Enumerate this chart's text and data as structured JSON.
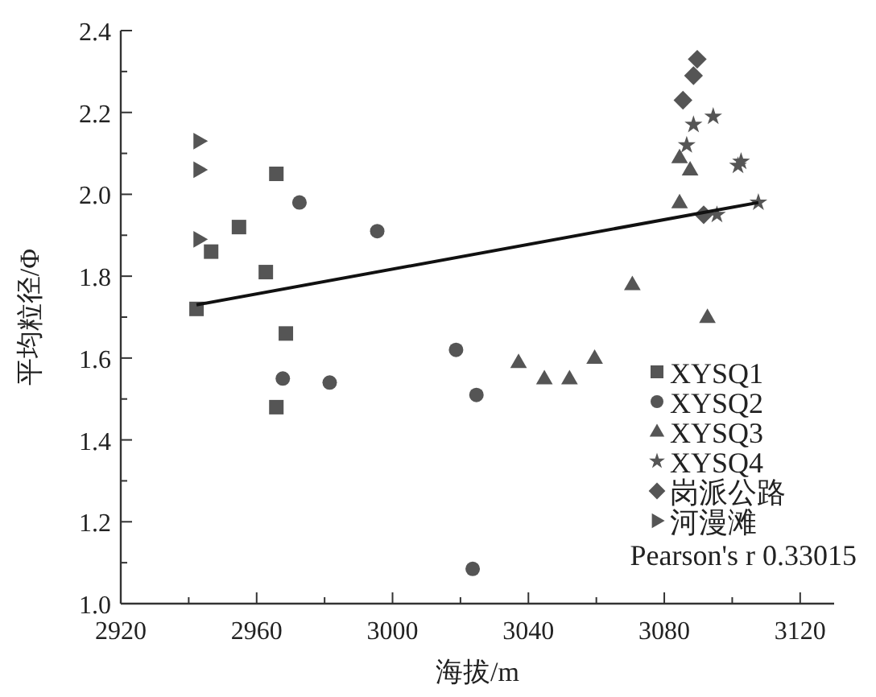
{
  "chart_data": {
    "type": "scatter",
    "xlabel": "海拔/m",
    "ylabel": "平均粒径/Φ",
    "xlim": [
      2920,
      3130
    ],
    "ylim": [
      1.0,
      2.4
    ],
    "xticks": [
      2920,
      {
        "value": 2940,
        "label": null
      },
      2960,
      {
        "value": 2980,
        "label": null
      },
      3000,
      {
        "value": 3020,
        "label": null
      },
      3040,
      {
        "value": 3060,
        "label": null
      },
      3080,
      {
        "value": 3100,
        "label": null
      },
      3120
    ],
    "yticks": [
      {
        "value": 1.0,
        "label": "1.0"
      },
      {
        "value": 1.1,
        "label": null
      },
      1.2,
      {
        "value": 1.3,
        "label": null
      },
      1.4,
      {
        "value": 1.5,
        "label": null
      },
      1.6,
      {
        "value": 1.7,
        "label": null
      },
      1.8,
      {
        "value": 1.9,
        "label": null
      },
      {
        "value": 2.0,
        "label": "2.0"
      },
      {
        "value": 2.1,
        "label": null
      },
      2.2,
      {
        "value": 2.3,
        "label": null
      },
      2.4
    ],
    "grid": false,
    "legend": "bottom right",
    "series": [
      {
        "name": "XYSQ1",
        "color": "#555555",
        "marker": "square",
        "x": [
          2942.3,
          2946.6,
          2954.8,
          2965.8,
          2962.7,
          2968.6,
          2965.8
        ],
        "values": [
          1.72,
          1.86,
          1.92,
          2.05,
          1.81,
          1.66,
          1.48
        ]
      },
      {
        "name": "XYSQ2",
        "color": "#555555",
        "marker": "circle",
        "x": [
          2972.6,
          2995.5,
          2967.7,
          2981.5,
          3018.7,
          3024.7,
          3023.6
        ],
        "values": [
          1.98,
          1.91,
          1.55,
          1.54,
          1.62,
          1.51,
          1.085
        ]
      },
      {
        "name": "XYSQ3",
        "color": "#555555",
        "marker": "triangle",
        "x": [
          3084.5,
          3087.6,
          3084.5,
          3070.6,
          3092.7,
          3037.1,
          3044.7,
          3052.1,
          3059.5
        ],
        "values": [
          2.09,
          2.06,
          1.98,
          1.78,
          1.7,
          1.59,
          1.55,
          1.55,
          1.6
        ]
      },
      {
        "name": "XYSQ4",
        "color": "#555555",
        "marker": "star",
        "x": [
          3088.6,
          3094.4,
          3086.6,
          3102.6,
          3101.7,
          3095.5,
          3107.7
        ],
        "values": [
          2.17,
          2.19,
          2.12,
          2.08,
          2.07,
          1.95,
          1.98
        ]
      },
      {
        "name": "岗派公路",
        "color": "#555555",
        "marker": "diamond",
        "x": [
          3089.7,
          3088.6,
          3085.5,
          3091.6
        ],
        "values": [
          2.33,
          2.29,
          2.23,
          1.95
        ]
      },
      {
        "name": "河漫滩",
        "color": "#555555",
        "marker": "triangle-right",
        "x": [
          2943.1,
          2943.1,
          2943.1
        ],
        "values": [
          2.13,
          2.06,
          1.89
        ]
      },
      {
        "type": "line",
        "color": "#111111",
        "marker": "none",
        "line_style": "solid",
        "x": [
          2942.3,
          3107.7
        ],
        "values": [
          1.73,
          1.98
        ]
      }
    ],
    "annotations": [
      "Pearson's r 0.33015"
    ]
  }
}
